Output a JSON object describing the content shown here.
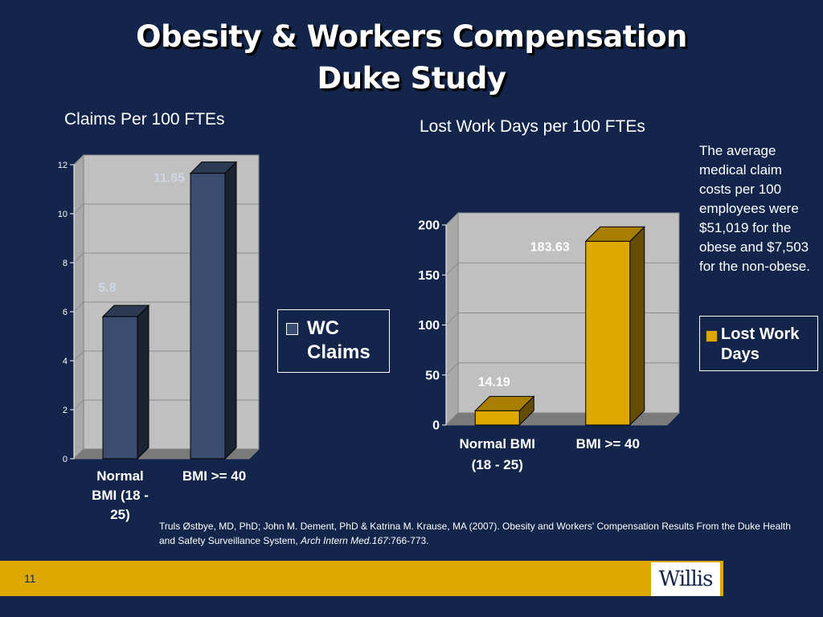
{
  "slide": {
    "title_line1": "Obesity & Workers Compensation",
    "title_line2": "Duke Study",
    "page_number": "11",
    "logo": "Willis"
  },
  "side_note": "The average medical claim costs per 100 employees were $51,019 for the obese and $7,503 for the non-obese.",
  "citation": {
    "text": "Truls Østbye, MD, PhD; John M. Dement, PhD & Katrina M. Krause, MA (2007).  Obesity and Workers' Compensation Results From the Duke Health and Safety Surveillance System, ",
    "journal": "Arch Intern Med.167",
    "pages": ":766-773."
  },
  "colors": {
    "background": "#13254a",
    "wc_claims_bar": "#3b4d6e",
    "lost_work_days_bar": "#dfa800",
    "plot_wall": "#c0c0c0",
    "footer_bar": "#dfa800"
  },
  "chart_data": [
    {
      "type": "bar",
      "title": "Claims Per 100 FTEs",
      "categories": [
        "Normal BMI (18 - 25)",
        "BMI >= 40"
      ],
      "series": [
        {
          "name": "WC Claims",
          "values": [
            5.8,
            11.65
          ]
        }
      ],
      "data_labels": [
        "5.8",
        "11.65"
      ],
      "yticks": [
        0,
        2,
        4,
        6,
        8,
        10,
        12
      ],
      "ylim": [
        0,
        12
      ],
      "legend": "right",
      "grid": true
    },
    {
      "type": "bar",
      "title": "Lost Work Days per 100 FTEs",
      "categories": [
        "Normal BMI (18 - 25)",
        "BMI >= 40"
      ],
      "series": [
        {
          "name": "Lost Work Days",
          "values": [
            14.19,
            183.63
          ]
        }
      ],
      "data_labels": [
        "14.19",
        "183.63"
      ],
      "yticks": [
        0,
        50,
        100,
        150,
        200
      ],
      "ylim": [
        0,
        200
      ],
      "legend": "right",
      "grid": true
    }
  ]
}
